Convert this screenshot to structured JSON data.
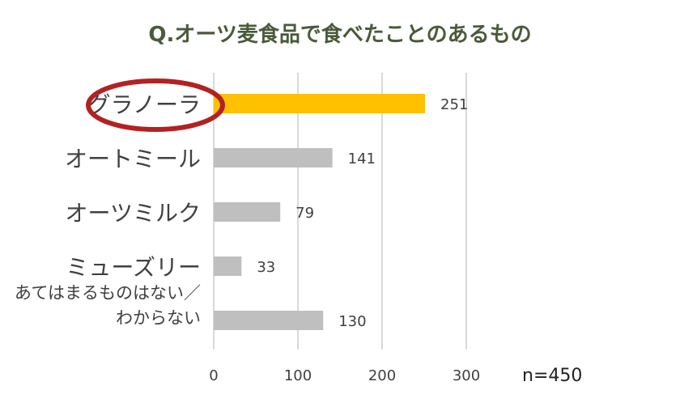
{
  "chart_data": {
    "type": "bar",
    "orientation": "horizontal",
    "title": "Q.オーツ麦食品で食べたことのあるもの",
    "categories": [
      "グラノーラ",
      "オートミール",
      "オーツミルク",
      "ミューズリー",
      "あてはまるものはない／わからない"
    ],
    "category_lines": [
      [
        "グラノーラ"
      ],
      [
        "オートミール"
      ],
      [
        "オーツミルク"
      ],
      [
        "ミューズリー"
      ],
      [
        "あてはまるものはない／",
        "わからない"
      ]
    ],
    "values": [
      251,
      141,
      79,
      33,
      130
    ],
    "highlight_index": 0,
    "xlim": [
      0,
      300
    ],
    "xticks": [
      0,
      100,
      200,
      300
    ],
    "grid": true,
    "colors": {
      "highlight_bar": "#FFC000",
      "bar": "#BFBFBF",
      "grid": "#D9D9D9",
      "circle": "#B22222",
      "text": "#404040",
      "title": "#4A5A3A"
    }
  },
  "note": "n=450"
}
